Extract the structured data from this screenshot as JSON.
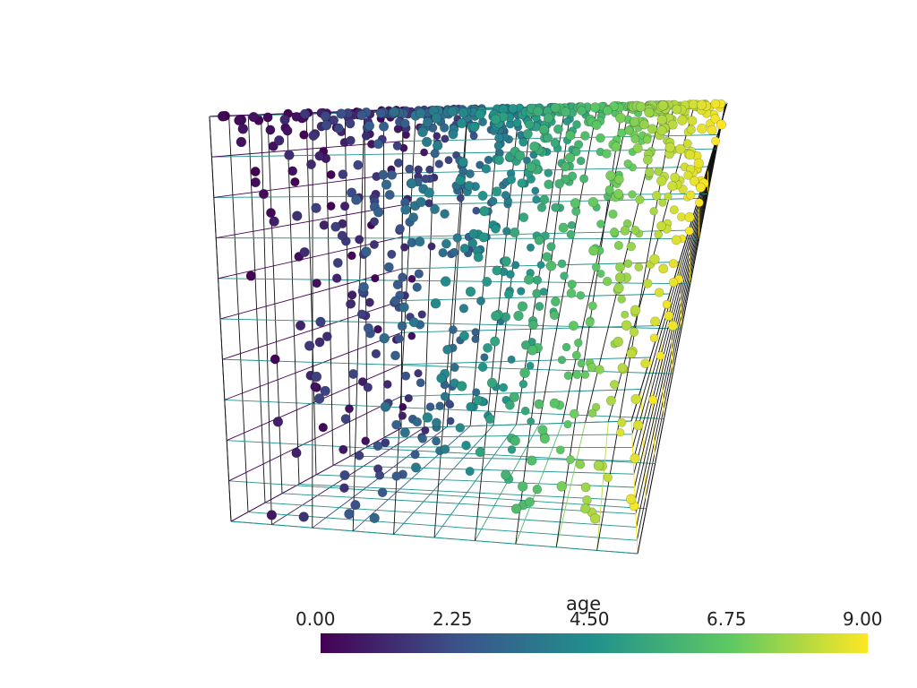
{
  "chart_data": {
    "type": "scatter",
    "dimensions": 3,
    "scalar_name": "age",
    "colormap": "viridis",
    "colormap_stops": [
      "#440154",
      "#3b528b",
      "#21918c",
      "#5ec962",
      "#fde725"
    ],
    "clim": [
      0.0,
      9.0
    ],
    "tick_labels": [
      "0.00",
      "2.25",
      "4.50",
      "6.75",
      "9.00"
    ],
    "grid": true,
    "grid_cells_per_axis": 10,
    "axis_range": [
      0,
      10
    ],
    "point_count_estimate": 1000,
    "distribution_note_values": "age increases along x; points concentrated near top (high z)"
  }
}
